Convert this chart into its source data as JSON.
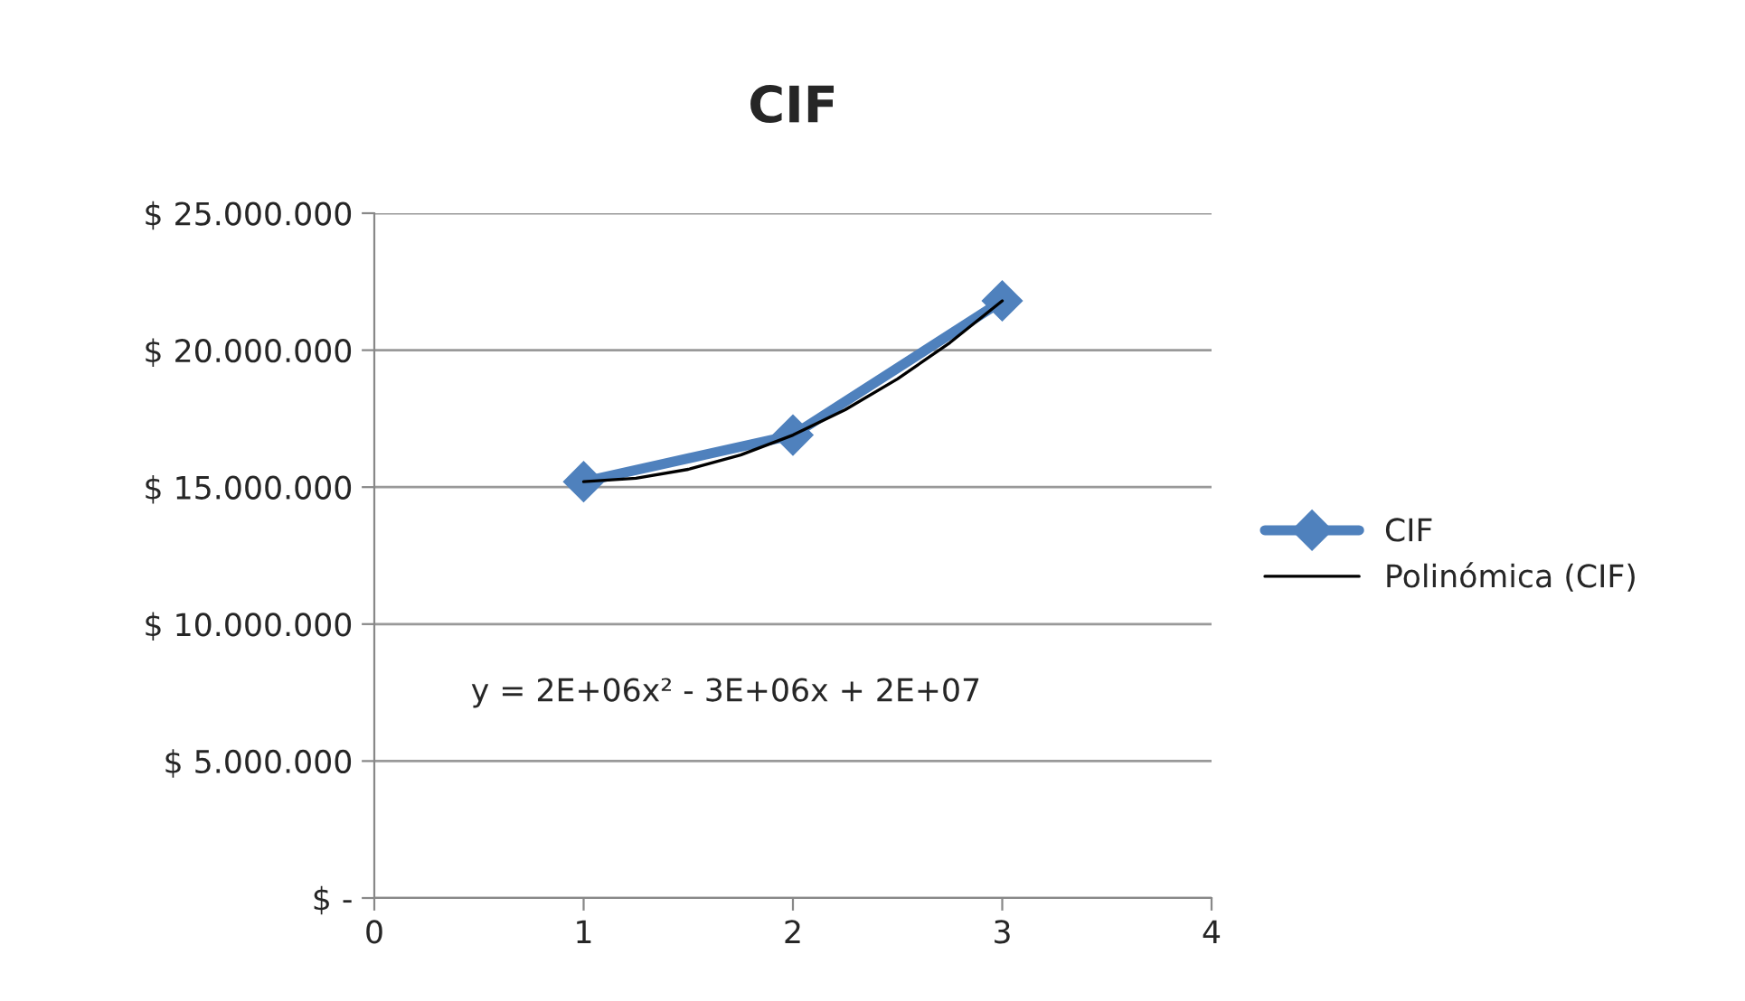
{
  "chart_data": {
    "type": "line",
    "title": "CIF",
    "series": [
      {
        "name": "CIF",
        "color": "#4f81bd",
        "x": [
          1,
          2,
          3
        ],
        "values": [
          15200000,
          16900000,
          21800000
        ],
        "marker": "diamond"
      },
      {
        "name": "Polinómica (CIF)",
        "color": "#000000",
        "x": [
          1,
          1.25,
          1.5,
          1.75,
          2,
          2.25,
          2.5,
          2.75,
          3
        ],
        "values": [
          15200000,
          15325000,
          15650000,
          16175000,
          16900000,
          17825000,
          18950000,
          20275000,
          21800000
        ],
        "marker": "none"
      }
    ],
    "xlim": [
      0,
      4
    ],
    "xticks": [
      0,
      1,
      2,
      3,
      4
    ],
    "ylim": [
      0,
      25000000
    ],
    "yticks": [
      {
        "value": 0,
        "label": "$ -"
      },
      {
        "value": 5000000,
        "label": "$ 5.000.000"
      },
      {
        "value": 10000000,
        "label": "$ 10.000.000"
      },
      {
        "value": 15000000,
        "label": "$ 15.000.000"
      },
      {
        "value": 20000000,
        "label": "$ 20.000.000"
      },
      {
        "value": 25000000,
        "label": "$ 25.000.000"
      }
    ],
    "grid": "y",
    "legend": "right",
    "annotations": [
      "y = 2E+06x² - 3E+06x + 2E+07"
    ]
  }
}
